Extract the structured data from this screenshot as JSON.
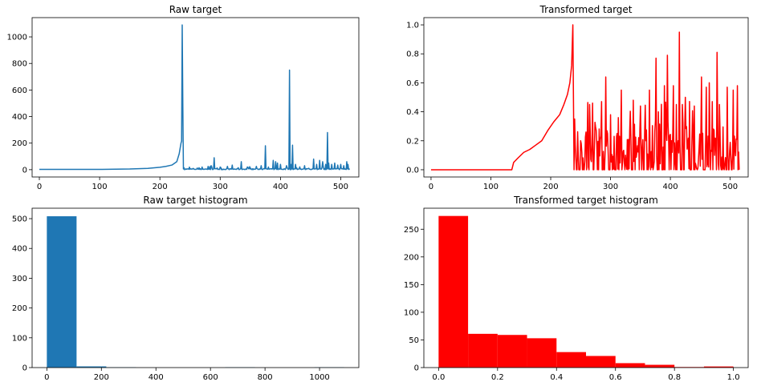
{
  "colors": {
    "raw": "#1f77b4",
    "transformed": "#ff0000",
    "axis": "#000000"
  },
  "chart_data": [
    {
      "type": "line",
      "title": "Raw target",
      "xlabel": "",
      "ylabel": "",
      "xlim": [
        -12,
        530
      ],
      "ylim": [
        -55,
        1145
      ],
      "xticks": [
        0,
        100,
        200,
        300,
        400,
        500
      ],
      "yticks": [
        0,
        200,
        400,
        600,
        800,
        1000
      ],
      "grid": false,
      "series": [
        {
          "color": "#1f77b4",
          "anchors": [
            [
              0,
              2
            ],
            [
              100,
              2
            ],
            [
              150,
              5
            ],
            [
              180,
              10
            ],
            [
              200,
              18
            ],
            [
              210,
              25
            ],
            [
              220,
              35
            ],
            [
              228,
              60
            ],
            [
              232,
              120
            ],
            [
              235,
              200
            ],
            [
              236,
              215
            ],
            [
              237,
              1090
            ],
            [
              238,
              500
            ],
            [
              239,
              5
            ]
          ],
          "tail": {
            "start": 240,
            "end": 515,
            "base": 8,
            "spikes": [
              [
                240,
                15
              ],
              [
                255,
                10
              ],
              [
                270,
                20
              ],
              [
                280,
                25
              ],
              [
                285,
                30
              ],
              [
                290,
                90
              ],
              [
                300,
                20
              ],
              [
                312,
                25
              ],
              [
                320,
                35
              ],
              [
                330,
                15
              ],
              [
                335,
                60
              ],
              [
                345,
                20
              ],
              [
                360,
                25
              ],
              [
                368,
                30
              ],
              [
                375,
                180
              ],
              [
                380,
                20
              ],
              [
                388,
                70
              ],
              [
                392,
                60
              ],
              [
                395,
                50
              ],
              [
                400,
                40
              ],
              [
                410,
                30
              ],
              [
                415,
                750
              ],
              [
                418,
                40
              ],
              [
                420,
                185
              ],
              [
                425,
                40
              ],
              [
                440,
                30
              ],
              [
                455,
                80
              ],
              [
                460,
                40
              ],
              [
                465,
                70
              ],
              [
                470,
                60
              ],
              [
                475,
                40
              ],
              [
                478,
                280
              ],
              [
                480,
                50
              ],
              [
                485,
                40
              ],
              [
                490,
                50
              ],
              [
                495,
                35
              ],
              [
                500,
                40
              ],
              [
                505,
                30
              ],
              [
                510,
                60
              ],
              [
                512,
                40
              ]
            ]
          }
        }
      ]
    },
    {
      "type": "line",
      "title": "Transformed target",
      "xlabel": "",
      "ylabel": "",
      "xlim": [
        -12,
        530
      ],
      "ylim": [
        -0.05,
        1.05
      ],
      "xticks": [
        0,
        100,
        200,
        300,
        400,
        500
      ],
      "yticks": [
        0.0,
        0.2,
        0.4,
        0.6,
        0.8,
        1.0
      ],
      "ytick_labels": [
        "0.0",
        "0.2",
        "0.4",
        "0.6",
        "0.8",
        "1.0"
      ],
      "grid": false,
      "series": [
        {
          "color": "#ff0000",
          "anchors": [
            [
              0,
              0
            ],
            [
              130,
              0
            ],
            [
              135,
              0.0
            ],
            [
              138,
              0.05
            ],
            [
              145,
              0.08
            ],
            [
              155,
              0.12
            ],
            [
              165,
              0.14
            ],
            [
              175,
              0.17
            ],
            [
              185,
              0.2
            ],
            [
              195,
              0.27
            ],
            [
              205,
              0.33
            ],
            [
              215,
              0.38
            ],
            [
              222,
              0.45
            ],
            [
              228,
              0.52
            ],
            [
              232,
              0.6
            ],
            [
              235,
              0.72
            ],
            [
              237,
              1.0
            ],
            [
              238,
              0.5
            ],
            [
              239,
              0.0
            ]
          ],
          "tail": {
            "start": 240,
            "end": 515,
            "range": [
              0,
              0.6
            ],
            "spikes": [
              [
                240,
                0.35
              ],
              [
                250,
                0.2
              ],
              [
                265,
                0.45
              ],
              [
                270,
                0.46
              ],
              [
                285,
                0.47
              ],
              [
                292,
                0.64
              ],
              [
                300,
                0.38
              ],
              [
                318,
                0.55
              ],
              [
                338,
                0.48
              ],
              [
                350,
                0.44
              ],
              [
                365,
                0.55
              ],
              [
                376,
                0.77
              ],
              [
                380,
                0.4
              ],
              [
                390,
                0.58
              ],
              [
                395,
                0.79
              ],
              [
                405,
                0.58
              ],
              [
                410,
                0.45
              ],
              [
                415,
                0.95
              ],
              [
                420,
                0.45
              ],
              [
                425,
                0.5
              ],
              [
                440,
                0.44
              ],
              [
                452,
                0.64
              ],
              [
                460,
                0.57
              ],
              [
                465,
                0.6
              ],
              [
                470,
                0.47
              ],
              [
                478,
                0.81
              ],
              [
                482,
                0.45
              ],
              [
                495,
                0.57
              ],
              [
                505,
                0.55
              ],
              [
                512,
                0.58
              ]
            ]
          }
        }
      ]
    },
    {
      "type": "bar",
      "title": "Raw target histogram",
      "xlabel": "",
      "ylabel": "",
      "xlim": [
        -54,
        1144
      ],
      "ylim": [
        0,
        535
      ],
      "xticks": [
        0,
        200,
        400,
        600,
        800,
        1000
      ],
      "yticks": [
        0,
        100,
        200,
        300,
        400,
        500
      ],
      "grid": false,
      "bins": [
        0,
        109,
        218,
        327,
        436,
        545,
        654,
        763,
        872,
        981,
        1090
      ],
      "counts": [
        508,
        4,
        1,
        0,
        0,
        0,
        1,
        0,
        0,
        1
      ],
      "color": "#1f77b4"
    },
    {
      "type": "bar",
      "title": "Transformed target histogram",
      "xlabel": "",
      "ylabel": "",
      "xlim": [
        -0.05,
        1.05
      ],
      "ylim": [
        0,
        288
      ],
      "xticks": [
        0.0,
        0.2,
        0.4,
        0.6,
        0.8,
        1.0
      ],
      "xtick_labels": [
        "0.0",
        "0.2",
        "0.4",
        "0.6",
        "0.8",
        "1.0"
      ],
      "yticks": [
        0,
        50,
        100,
        150,
        200,
        250
      ],
      "grid": false,
      "bins": [
        0.0,
        0.1,
        0.2,
        0.3,
        0.4,
        0.5,
        0.6,
        0.7,
        0.8,
        0.9,
        1.0
      ],
      "counts": [
        274,
        61,
        59,
        53,
        28,
        21,
        8,
        5,
        1,
        2
      ],
      "color": "#ff0000"
    }
  ]
}
